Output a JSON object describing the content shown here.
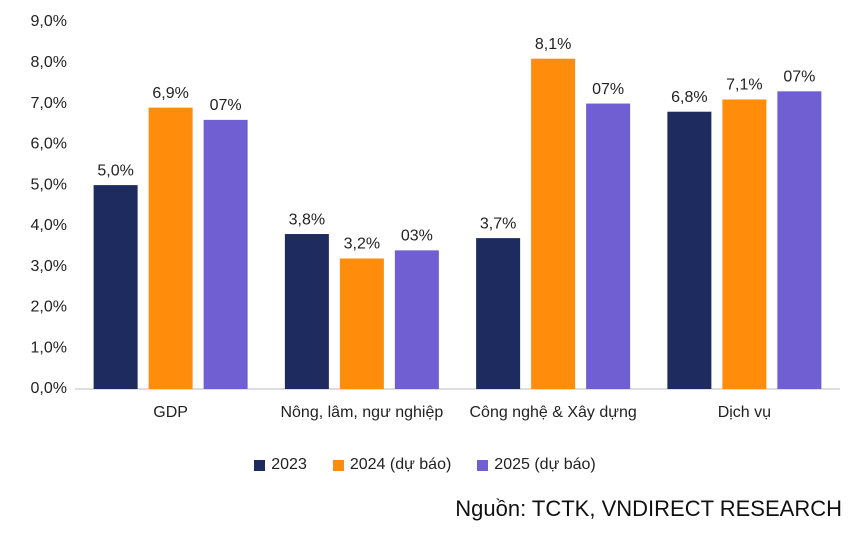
{
  "chart_data": {
    "type": "bar",
    "categories": [
      "GDP",
      "Nông, lâm, ngư nghiệp",
      "Công nghệ & Xây dựng",
      "Dịch vụ"
    ],
    "series": [
      {
        "name": "2023",
        "color": "#1d2b5e",
        "values": [
          5.0,
          3.8,
          3.7,
          6.8
        ],
        "value_labels": [
          "5,0%",
          "3,8%",
          "3,7%",
          "6,8%"
        ]
      },
      {
        "name": "2024 (dự báo)",
        "color": "#ff8c0a",
        "values": [
          6.9,
          3.2,
          8.1,
          7.1
        ],
        "value_labels": [
          "6,9%",
          "3,2%",
          "8,1%",
          "7,1%"
        ]
      },
      {
        "name": "2025 (dự báo)",
        "color": "#6f5fd3",
        "values": [
          6.6,
          3.4,
          7.0,
          7.3
        ],
        "value_labels": [
          "07%",
          "03%",
          "07%",
          "07%"
        ]
      }
    ],
    "ylim": [
      0,
      9
    ],
    "yticks": [
      {
        "value": 0,
        "label": "0,0%"
      },
      {
        "value": 1,
        "label": "1,0%"
      },
      {
        "value": 2,
        "label": "2,0%"
      },
      {
        "value": 3,
        "label": "3,0%"
      },
      {
        "value": 4,
        "label": "4,0%"
      },
      {
        "value": 5,
        "label": "5,0%"
      },
      {
        "value": 6,
        "label": "6,0%"
      },
      {
        "value": 7,
        "label": "7,0%"
      },
      {
        "value": 8,
        "label": "8,0%"
      },
      {
        "value": 9,
        "label": "9,0%"
      }
    ],
    "grid": false,
    "legend": "bottom",
    "note": "Nguồn:  TCTK, VNDIRECT RESEARCH"
  }
}
